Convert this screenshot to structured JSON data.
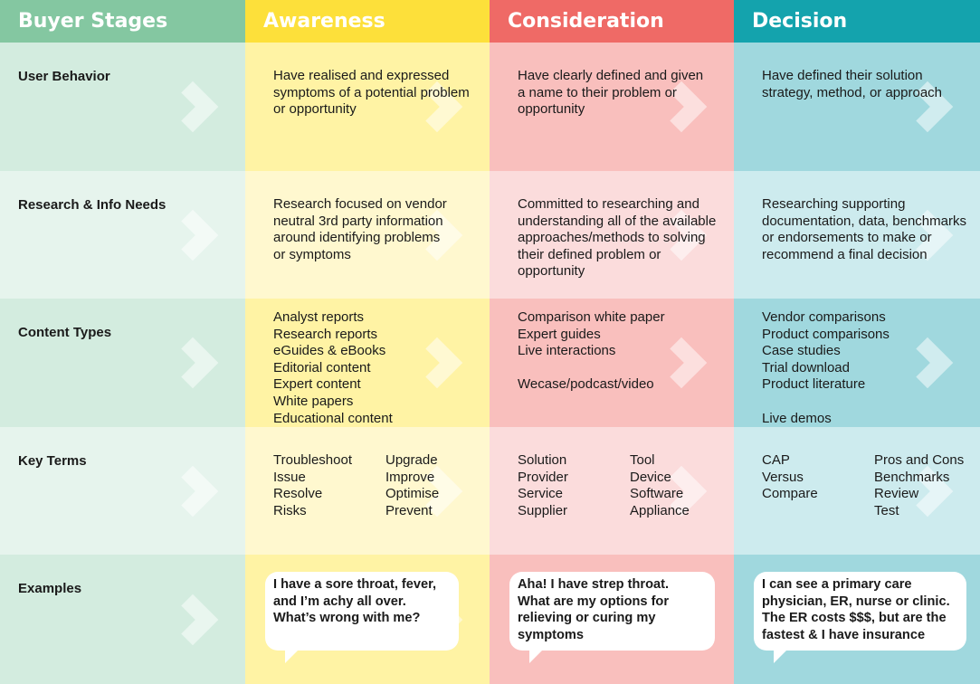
{
  "headers": [
    "Buyer Stages",
    "Awareness",
    "Consideration",
    "Decision"
  ],
  "colors": {
    "header": [
      "#84c7a1",
      "#fde03a",
      "#ef6a66",
      "#14a3ad"
    ],
    "rows": [
      [
        "#d3ecdf",
        "#fff3a4",
        "#f9bfbd",
        "#a0d8de"
      ],
      [
        "#e6f4ed",
        "#fff8cf",
        "#fbdcdc",
        "#cdebee"
      ]
    ]
  },
  "rows": [
    {
      "label": "User Behavior",
      "cells": [
        [
          "Have realised and expressed",
          "symptoms of a potential problem",
          "or opportunity"
        ],
        [
          "Have clearly defined and given",
          "a name to their problem or",
          "opportunity"
        ],
        [
          "Have defined their solution",
          "strategy, method, or approach"
        ]
      ]
    },
    {
      "label": "Research & Info Needs",
      "cells": [
        [
          "Research focused on vendor",
          "neutral 3rd party information",
          "around identifying problems",
          "or symptoms"
        ],
        [
          "Committed to researching and",
          "understanding all of the available",
          "approaches/methods to solving",
          "their defined problem or",
          "opportunity"
        ],
        [
          "Researching supporting",
          "documentation, data, benchmarks",
          "or endorsements to make or",
          "recommend a final decision"
        ]
      ]
    },
    {
      "label": "Content Types",
      "cells": [
        [
          "Analyst reports",
          "Research reports",
          "eGuides & eBooks",
          "Editorial content",
          "Expert content",
          "White papers",
          "Educational content"
        ],
        [
          "Comparison white paper",
          "Expert guides",
          "Live interactions",
          "",
          "Wecase/podcast/video"
        ],
        [
          "Vendor comparisons",
          "Product comparisons",
          "Case studies",
          "Trial download",
          "Product literature",
          "",
          "Live demos"
        ]
      ]
    },
    {
      "label": "Key Terms",
      "cells": [
        {
          "left": [
            "Troubleshoot",
            "Issue",
            "Resolve",
            "Risks"
          ],
          "right": [
            "Upgrade",
            "Improve",
            "Optimise",
            "Prevent"
          ]
        },
        {
          "left": [
            "Solution",
            "Provider",
            "Service",
            "Supplier"
          ],
          "right": [
            "Tool",
            "Device",
            "Software",
            "Appliance"
          ]
        },
        {
          "left": [
            "CAP",
            "Versus",
            "Compare"
          ],
          "right": [
            "Pros and Cons",
            "Benchmarks",
            "Review",
            "Test"
          ]
        }
      ]
    },
    {
      "label": "Examples",
      "cells": [
        [
          "I have a sore throat, fever,",
          "and I’m achy all over.",
          "What’s wrong with me?"
        ],
        [
          "Aha! I have strep throat.",
          "What are my options for",
          "relieving or curing my",
          "symptoms"
        ],
        [
          "I can see a primary care",
          "physician, ER, nurse or clinic.",
          "The ER costs $$$, but are the",
          "fastest & I have insurance"
        ]
      ]
    }
  ]
}
